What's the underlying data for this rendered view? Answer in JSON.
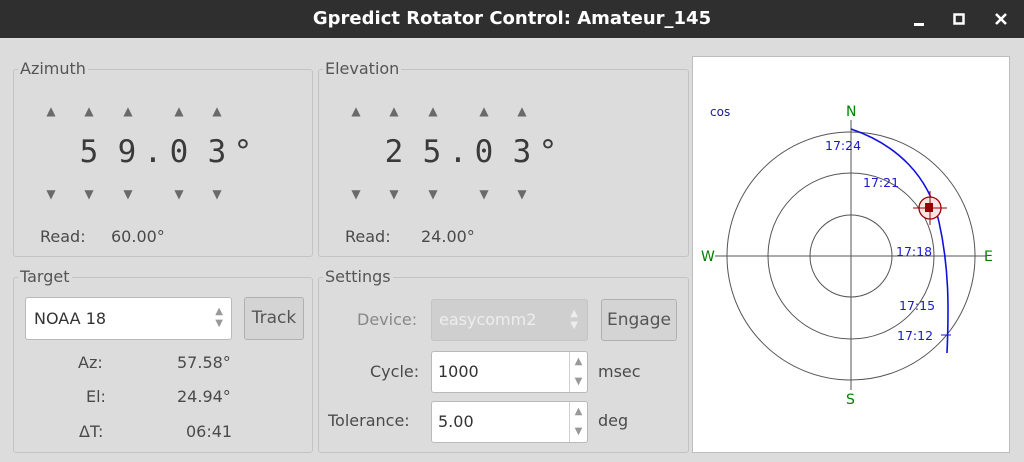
{
  "window": {
    "title": "Gpredict Rotator Control: Amateur_145",
    "buttons": [
      "minimize-icon",
      "maximize-icon",
      "close-icon"
    ]
  },
  "azimuth": {
    "label": "Azimuth",
    "digits": [
      "5",
      "9",
      ".",
      "0",
      "3",
      "°"
    ],
    "read_label": "Read:",
    "read_value": "60.00°"
  },
  "elevation": {
    "label": "Elevation",
    "digits": [
      "2",
      "5",
      ".",
      "0",
      "3",
      "°"
    ],
    "read_label": "Read:",
    "read_value": "24.00°"
  },
  "target": {
    "label": "Target",
    "satellite": "NOAA 18",
    "track_label": "Track",
    "az_label": "Az:",
    "az_value": "57.58°",
    "el_label": "El:",
    "el_value": "24.94°",
    "dt_label": "ΔT:",
    "dt_value": "06:41"
  },
  "settings": {
    "label": "Settings",
    "device_label": "Device:",
    "device_value": "easycomm2",
    "engage_label": "Engage",
    "cycle_label": "Cycle:",
    "cycle_value": "1000",
    "cycle_unit": "msec",
    "tolerance_label": "Tolerance:",
    "tolerance_value": "5.00",
    "tolerance_unit": "deg"
  },
  "polar": {
    "mode": "cos",
    "north": "N",
    "south": "S",
    "east": "E",
    "west": "W",
    "times": [
      "17:24",
      "17:21",
      "17:18",
      "17:15",
      "17:12"
    ],
    "colors": {
      "track": "#0000e0",
      "compass": "#008000",
      "grid": "#505050",
      "target": "#9a0000"
    }
  }
}
